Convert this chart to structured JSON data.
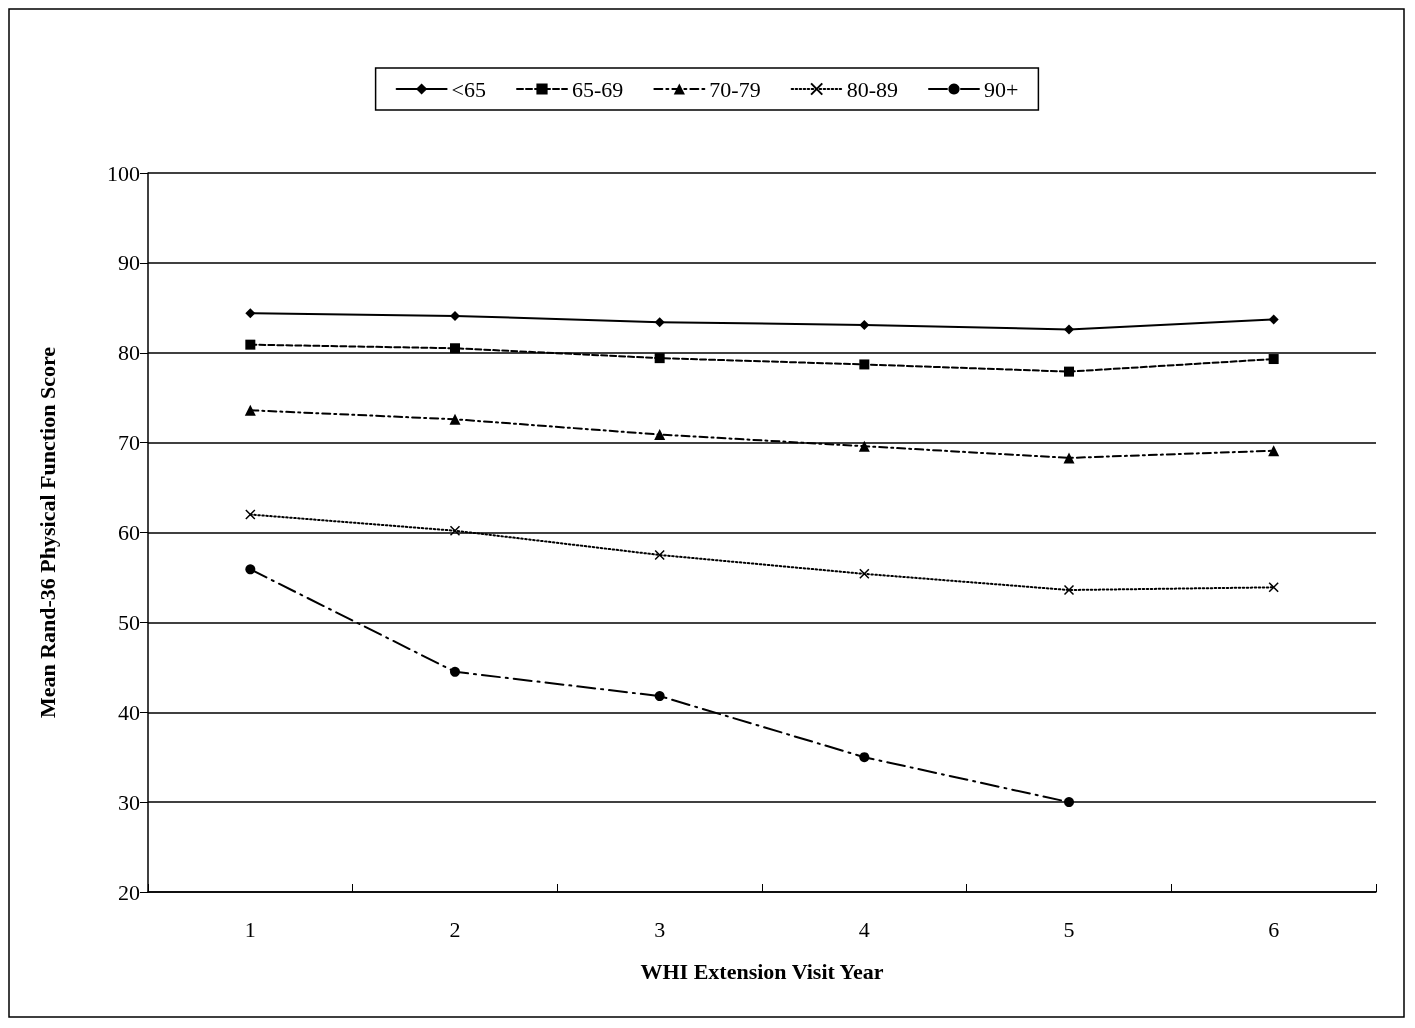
{
  "chart_data": {
    "type": "line",
    "xlabel": "WHI Extension Visit Year",
    "ylabel": "Mean Rand-36 Physical Function Score",
    "categories": [
      "1",
      "2",
      "3",
      "4",
      "5",
      "6"
    ],
    "series": [
      {
        "name": "<65",
        "color": "#000000",
        "marker": "diamond",
        "line_style": "solid",
        "values": [
          84.4,
          84.1,
          83.4,
          83.1,
          82.6,
          83.7
        ]
      },
      {
        "name": "65-69",
        "color": "#000000",
        "marker": "square",
        "line_style": "dashed",
        "values": [
          80.9,
          80.5,
          79.4,
          78.7,
          77.9,
          79.3
        ]
      },
      {
        "name": "70-79",
        "color": "#000000",
        "marker": "triangle",
        "line_style": "dashdot",
        "values": [
          73.6,
          72.6,
          70.9,
          69.6,
          68.3,
          69.1
        ]
      },
      {
        "name": "80-89",
        "color": "#000000",
        "marker": "cross",
        "line_style": "dotted",
        "values": [
          62.0,
          60.2,
          57.5,
          55.4,
          53.6,
          53.9
        ]
      },
      {
        "name": "90+",
        "color": "#000000",
        "marker": "circle",
        "line_style": "longdashdot",
        "values": [
          55.9,
          44.5,
          41.8,
          35.0,
          30.0,
          null
        ]
      }
    ],
    "ylim": [
      20,
      100
    ],
    "yticks": [
      20,
      30,
      40,
      50,
      60,
      70,
      80,
      90,
      100
    ],
    "grid": "y",
    "legend": "top"
  }
}
